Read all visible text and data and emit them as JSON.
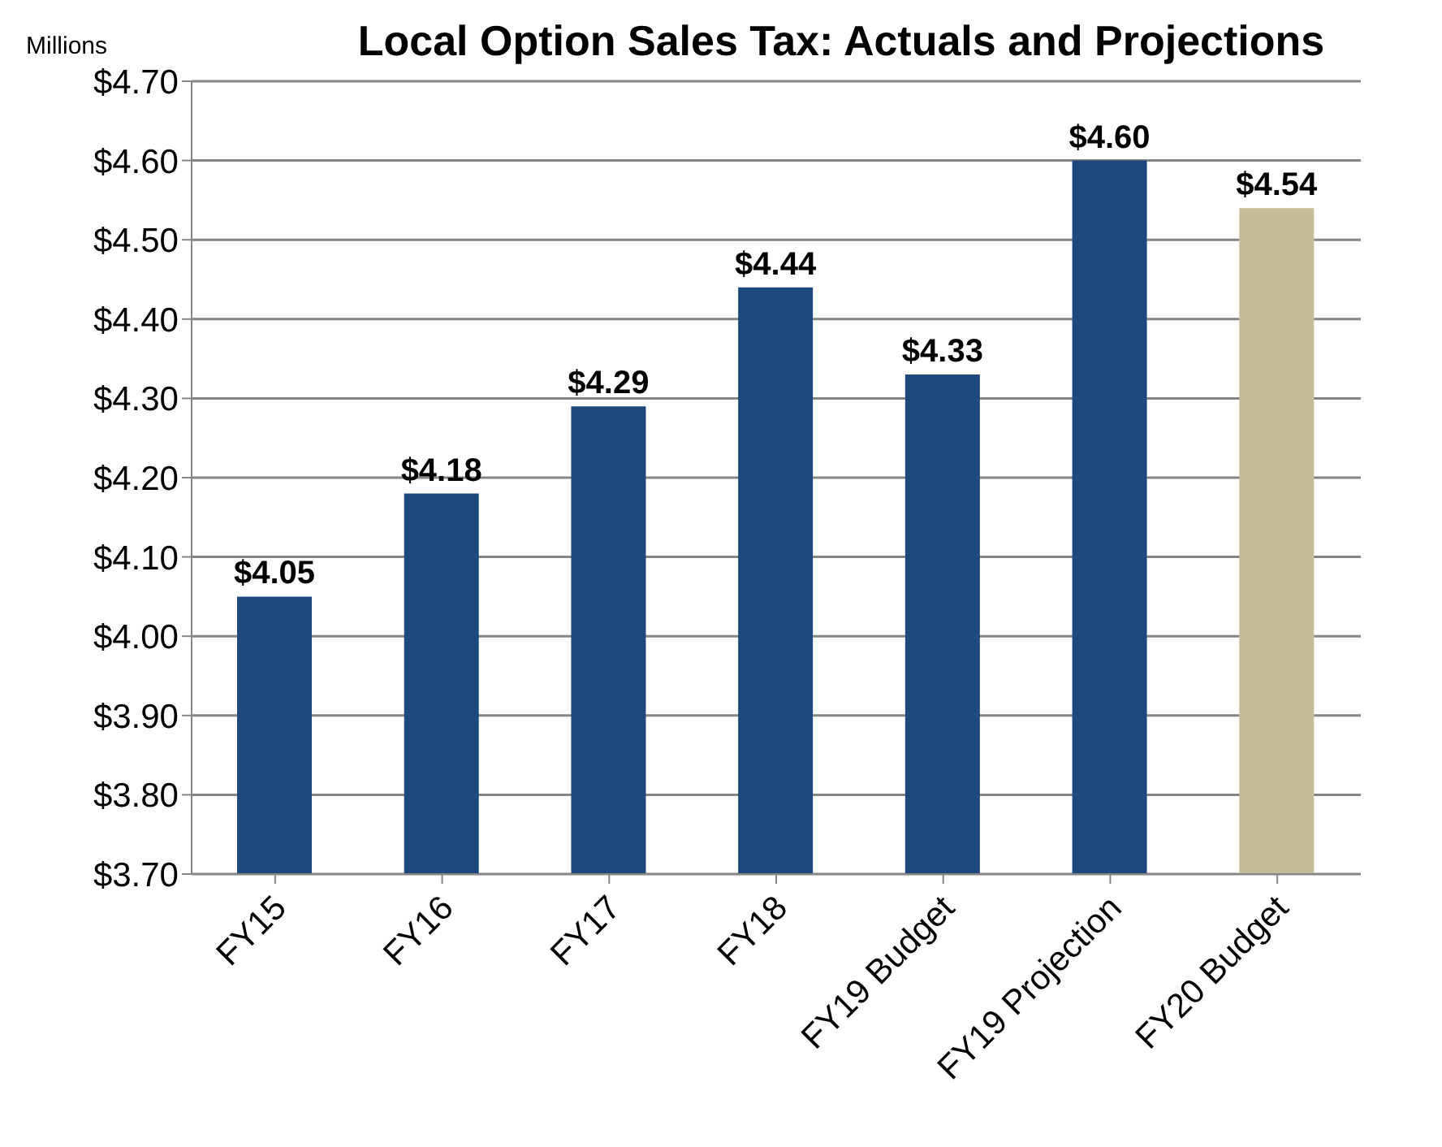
{
  "chart_data": {
    "type": "bar",
    "title": "Local Option Sales Tax: Actuals and Projections",
    "ylabel": "Millions",
    "categories": [
      "FY15",
      "FY16",
      "FY17",
      "FY18",
      "FY19 Budget",
      "FY19 Projection",
      "FY20 Budget"
    ],
    "values": [
      4.05,
      4.18,
      4.29,
      4.44,
      4.33,
      4.6,
      4.54
    ],
    "colors": [
      "#1f497d",
      "#1f497d",
      "#1f497d",
      "#1f497d",
      "#1f497d",
      "#1f497d",
      "#c4bd97"
    ],
    "value_labels": [
      "$4.05",
      "$4.18",
      "$4.29",
      "$4.44",
      "$4.33",
      "$4.60",
      "$4.54"
    ],
    "ylim": [
      3.7,
      4.7
    ],
    "yticks": [
      {
        "value": 3.7,
        "label": "$3.70"
      },
      {
        "value": 3.8,
        "label": "$3.80"
      },
      {
        "value": 3.9,
        "label": "$3.90"
      },
      {
        "value": 4.0,
        "label": "$4.00"
      },
      {
        "value": 4.1,
        "label": "$4.10"
      },
      {
        "value": 4.2,
        "label": "$4.20"
      },
      {
        "value": 4.3,
        "label": "$4.30"
      },
      {
        "value": 4.4,
        "label": "$4.40"
      },
      {
        "value": 4.5,
        "label": "$4.50"
      },
      {
        "value": 4.6,
        "label": "$4.60"
      },
      {
        "value": 4.7,
        "label": "$4.70"
      }
    ],
    "grid": "y"
  }
}
